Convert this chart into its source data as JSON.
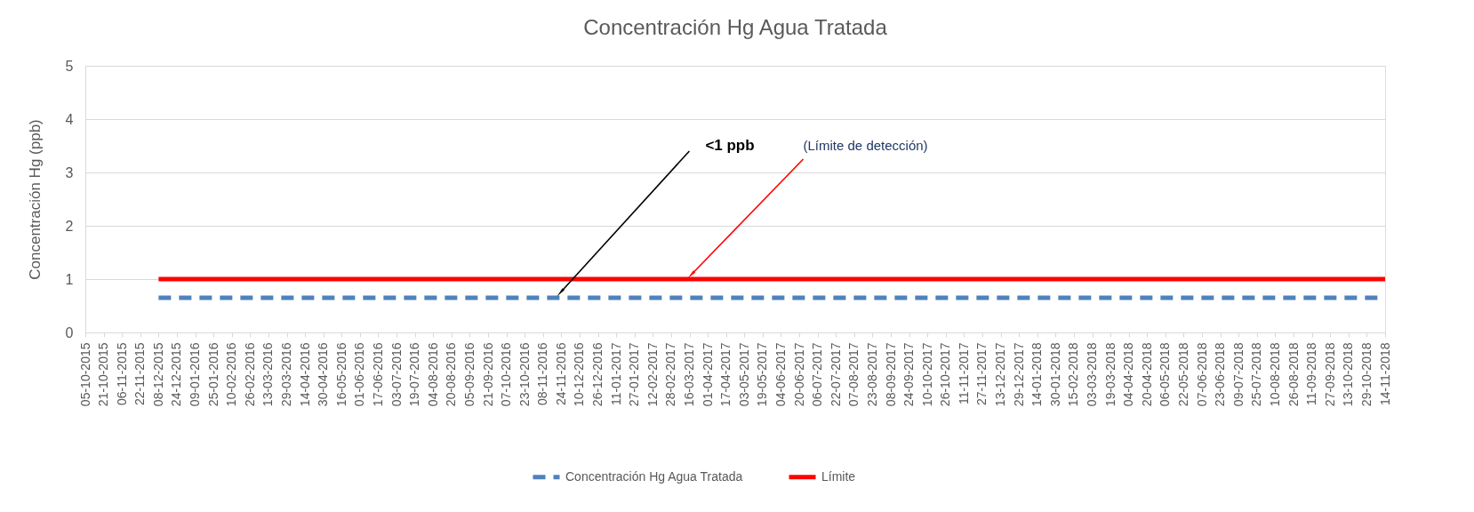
{
  "chart_data": {
    "type": "line",
    "title": "Concentración Hg Agua Tratada",
    "ylabel": "Concentración Hg (ppb)",
    "categories": [
      "05-10-2015",
      "21-10-2015",
      "06-11-2015",
      "22-11-2015",
      "08-12-2015",
      "24-12-2015",
      "09-01-2016",
      "25-01-2016",
      "10-02-2016",
      "26-02-2016",
      "13-03-2016",
      "29-03-2016",
      "14-04-2016",
      "30-04-2016",
      "16-05-2016",
      "01-06-2016",
      "17-06-2016",
      "03-07-2016",
      "19-07-2016",
      "04-08-2016",
      "20-08-2016",
      "05-09-2016",
      "21-09-2016",
      "07-10-2016",
      "23-10-2016",
      "08-11-2016",
      "24-11-2016",
      "10-12-2016",
      "26-12-2016",
      "11-01-2017",
      "27-01-2017",
      "12-02-2017",
      "28-02-2017",
      "16-03-2017",
      "01-04-2017",
      "17-04-2017",
      "03-05-2017",
      "19-05-2017",
      "04-06-2017",
      "20-06-2017",
      "06-07-2017",
      "22-07-2017",
      "07-08-2017",
      "23-08-2017",
      "08-09-2017",
      "24-09-2017",
      "10-10-2017",
      "26-10-2017",
      "11-11-2017",
      "27-11-2017",
      "13-12-2017",
      "29-12-2017",
      "14-01-2018",
      "30-01-2018",
      "15-02-2018",
      "03-03-2018",
      "19-03-2018",
      "04-04-2018",
      "20-04-2018",
      "06-05-2018",
      "22-05-2018",
      "07-06-2018",
      "23-06-2018",
      "09-07-2018",
      "25-07-2018",
      "10-08-2018",
      "26-08-2018",
      "11-09-2018",
      "27-09-2018",
      "13-10-2018",
      "29-10-2018",
      "14-11-2018"
    ],
    "series": [
      {
        "name": "Concentración Hg Agua Tratada",
        "color": "#4f81bd",
        "line_style": "dashed",
        "values": [
          null,
          null,
          null,
          null,
          0.65,
          0.65,
          0.65,
          0.65,
          0.65,
          0.65,
          0.65,
          0.65,
          0.65,
          0.65,
          0.65,
          0.65,
          0.65,
          0.65,
          0.65,
          0.65,
          0.65,
          0.65,
          0.65,
          0.65,
          0.65,
          0.65,
          0.65,
          0.65,
          0.65,
          0.65,
          0.65,
          0.65,
          0.65,
          0.65,
          0.65,
          0.65,
          0.65,
          0.65,
          0.65,
          0.65,
          0.65,
          0.65,
          0.65,
          0.65,
          0.65,
          0.65,
          0.65,
          0.65,
          0.65,
          0.65,
          0.65,
          0.65,
          0.65,
          0.65,
          0.65,
          0.65,
          0.65,
          0.65,
          0.65,
          0.65,
          0.65,
          0.65,
          0.65,
          0.65,
          0.65,
          0.65,
          0.65,
          0.65,
          0.65,
          0.65,
          0.65,
          0.65
        ]
      },
      {
        "name": "Límite",
        "color": "#ff0000",
        "line_style": "solid",
        "values": [
          null,
          null,
          null,
          null,
          1,
          1,
          1,
          1,
          1,
          1,
          1,
          1,
          1,
          1,
          1,
          1,
          1,
          1,
          1,
          1,
          1,
          1,
          1,
          1,
          1,
          1,
          1,
          1,
          1,
          1,
          1,
          1,
          1,
          1,
          1,
          1,
          1,
          1,
          1,
          1,
          1,
          1,
          1,
          1,
          1,
          1,
          1,
          1,
          1,
          1,
          1,
          1,
          1,
          1,
          1,
          1,
          1,
          1,
          1,
          1,
          1,
          1,
          1,
          1,
          1,
          1,
          1,
          1,
          1,
          1,
          1,
          1
        ]
      }
    ],
    "ylim": [
      0,
      5
    ],
    "yticks": [
      0,
      1,
      2,
      3,
      4,
      5
    ],
    "grid": "y",
    "legend": "bottom",
    "marker": "none",
    "annotations": [
      {
        "text": "<1 ppb",
        "x": "24-11-2016",
        "y": 0.65
      },
      {
        "text": "(Límite de detección)",
        "x": "16-03-2017",
        "y": 1
      }
    ]
  }
}
